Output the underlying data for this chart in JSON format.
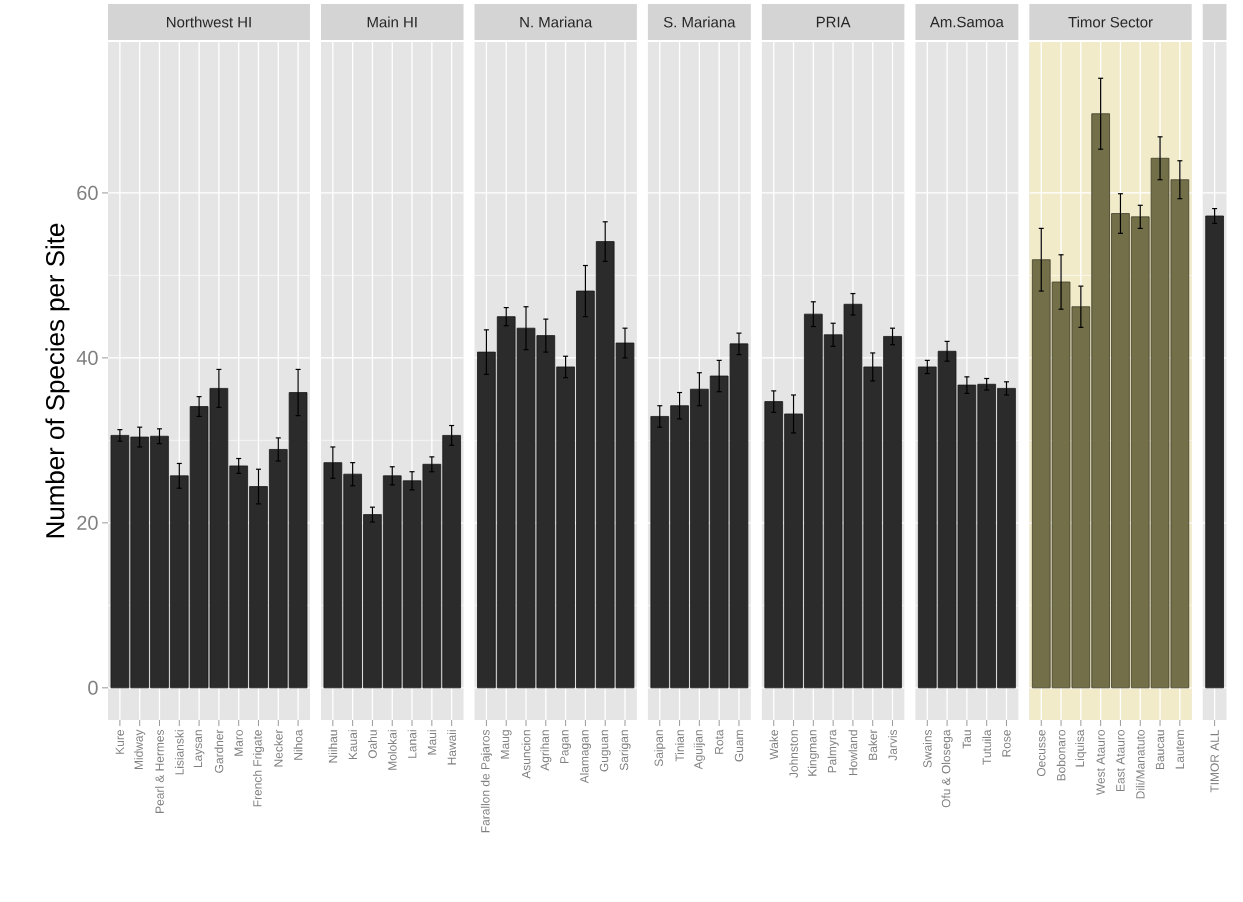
{
  "chart_data": [
    {
      "type": "bar",
      "title": "Northwest HI",
      "ylabel": "Number of Species per Site",
      "categories": [
        "Kure",
        "Midway",
        "Pearl & Hermes",
        "Lisianski",
        "Laysan",
        "Gardner",
        "Maro",
        "French Frigate",
        "Necker",
        "Nihoa"
      ],
      "values": [
        30.6,
        30.4,
        30.5,
        25.7,
        34.1,
        36.3,
        26.9,
        24.4,
        28.9,
        35.8
      ],
      "errors": [
        0.7,
        1.2,
        0.9,
        1.5,
        1.2,
        2.3,
        0.9,
        2.1,
        1.4,
        2.8
      ],
      "color": "#2b2b2b",
      "ylim": [
        -3.9,
        78.3
      ],
      "yticks": [
        0,
        20,
        40,
        60
      ],
      "grid": true
    },
    {
      "type": "bar",
      "title": "Main HI",
      "categories": [
        "Niihau",
        "Kauai",
        "Oahu",
        "Molokai",
        "Lanai",
        "Maui",
        "Hawaii"
      ],
      "values": [
        27.3,
        25.9,
        21.0,
        25.7,
        25.1,
        27.1,
        30.6
      ],
      "errors": [
        1.9,
        1.4,
        0.9,
        1.1,
        1.1,
        0.9,
        1.2
      ],
      "color": "#2b2b2b",
      "ylim": [
        -3.9,
        78.3
      ],
      "yticks": [
        0,
        20,
        40,
        60
      ],
      "grid": true,
      "tick_labels": "x"
    },
    {
      "type": "bar",
      "title": "N. Mariana",
      "categories": [
        "Farallon de Pajaros",
        "Maug",
        "Asuncion",
        "Agrihan",
        "Pagan",
        "Alamagan",
        "Guguan",
        "Sarigan"
      ],
      "values": [
        40.7,
        45.0,
        43.6,
        42.7,
        38.9,
        48.1,
        54.1,
        41.8
      ],
      "errors": [
        2.7,
        1.1,
        2.6,
        2.0,
        1.3,
        3.1,
        2.4,
        1.8
      ],
      "color": "#2b2b2b",
      "ylim": [
        -3.9,
        78.3
      ],
      "yticks": [
        0,
        20,
        40,
        60
      ],
      "grid": true,
      "tick_labels": "x"
    },
    {
      "type": "bar",
      "title": "S. Mariana",
      "categories": [
        "Saipan",
        "Tinian",
        "Aguijan",
        "Rota",
        "Guam"
      ],
      "values": [
        32.9,
        34.2,
        36.2,
        37.8,
        41.7
      ],
      "errors": [
        1.3,
        1.6,
        2.0,
        1.9,
        1.3
      ],
      "color": "#2b2b2b",
      "ylim": [
        -3.9,
        78.3
      ],
      "yticks": [
        0,
        20,
        40,
        60
      ],
      "grid": true,
      "tick_labels": "x"
    },
    {
      "type": "bar",
      "title": "PRIA",
      "categories": [
        "Wake",
        "Johnston",
        "Kingman",
        "Palmyra",
        "Howland",
        "Baker",
        "Jarvis"
      ],
      "values": [
        34.7,
        33.2,
        45.3,
        42.8,
        46.5,
        38.9,
        42.6
      ],
      "errors": [
        1.3,
        2.3,
        1.5,
        1.4,
        1.3,
        1.7,
        1.0
      ],
      "color": "#2b2b2b",
      "ylim": [
        -3.9,
        78.3
      ],
      "yticks": [
        0,
        20,
        40,
        60
      ],
      "grid": true,
      "tick_labels": "x"
    },
    {
      "type": "bar",
      "title": "Am.Samoa",
      "categories": [
        "Swains",
        "Ofu & Olosega",
        "Tau",
        "Tutuila",
        "Rose"
      ],
      "values": [
        38.9,
        40.8,
        36.7,
        36.8,
        36.3
      ],
      "errors": [
        0.8,
        1.2,
        1.0,
        0.7,
        0.8
      ],
      "color": "#2b2b2b",
      "ylim": [
        -3.9,
        78.3
      ],
      "yticks": [
        0,
        20,
        40,
        60
      ],
      "grid": true,
      "tick_labels": "x"
    },
    {
      "type": "bar",
      "title": "Timor Sector",
      "categories": [
        "Oecusse",
        "Bobonaro",
        "Liquisa",
        "West Atauro",
        "East Atauro",
        "Dili/Manatuto",
        "Baucau",
        "Lautem"
      ],
      "values": [
        51.9,
        49.2,
        46.2,
        69.6,
        57.5,
        57.1,
        64.2,
        61.6
      ],
      "errors": [
        3.8,
        3.3,
        2.5,
        4.3,
        2.4,
        1.4,
        2.6,
        2.3
      ],
      "color": "#737049",
      "ylim": [
        -3.9,
        78.3
      ],
      "yticks": [
        0,
        20,
        40,
        60
      ],
      "grid": true,
      "tick_labels": "x",
      "bands": [
        {
          "axis": "x",
          "from": "Oecusse",
          "to": "Lautem",
          "color": "#f2ebca"
        }
      ]
    },
    {
      "type": "bar",
      "categories": [
        "TIMOR ALL"
      ],
      "values": [
        57.2
      ],
      "errors": [
        0.9
      ],
      "color": "#2b2b2b",
      "ylim": [
        -3.9,
        78.3
      ],
      "yticks": [
        0,
        20,
        40,
        60
      ],
      "grid": true,
      "tick_labels": "x"
    }
  ]
}
